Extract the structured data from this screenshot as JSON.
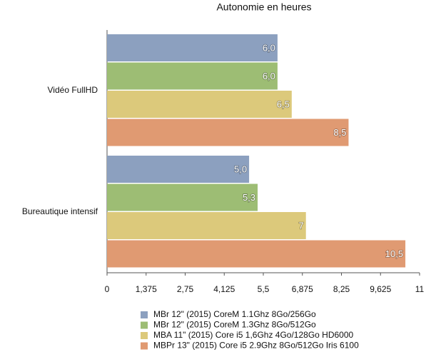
{
  "chart_data": {
    "type": "hbar",
    "title": "Autonomie en heures",
    "categories": [
      "Vidéo FullHD",
      "Bureautique intensif"
    ],
    "series": [
      {
        "name": "MBr 12\" (2015) CoreM 1.1Ghz 8Go/256Go",
        "color": "#8ca0bf",
        "values": [
          6.0,
          5.0
        ],
        "value_labels": [
          "6,0",
          "5,0"
        ]
      },
      {
        "name": "MBr 12\" (2015) CoreM 1.3Ghz 8Go/512Go",
        "color": "#9dbd74",
        "values": [
          6.0,
          5.3
        ],
        "value_labels": [
          "6,0",
          "5,3"
        ]
      },
      {
        "name": "MBA  11\" (2015)  Core i5 1,6Ghz 4Go/128Go HD6000",
        "color": "#dcc97b",
        "values": [
          6.5,
          7
        ],
        "value_labels": [
          "6,5",
          "7"
        ]
      },
      {
        "name": "MBPr 13\" (2015) Core i5 2.9Ghz 8Go/512Go Iris 6100",
        "color": "#e09a72",
        "values": [
          8.5,
          10.5
        ],
        "value_labels": [
          "8,5",
          "10,5"
        ]
      }
    ],
    "xlim": [
      0,
      11
    ],
    "xticks": [
      0,
      {
        "value": 1.375,
        "label": "1,375"
      },
      {
        "value": 2.75,
        "label": "2,75"
      },
      {
        "value": 4.125,
        "label": "4,125"
      },
      {
        "value": 5.5,
        "label": "5,5"
      },
      {
        "value": 6.875,
        "label": "6,875"
      },
      {
        "value": 8.25,
        "label": "8,25"
      },
      {
        "value": 9.625,
        "label": "9,625"
      },
      11
    ],
    "grid": false
  }
}
